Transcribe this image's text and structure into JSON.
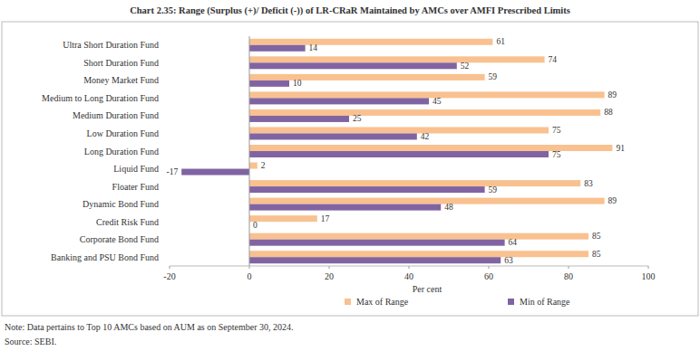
{
  "chart_data": {
    "type": "bar",
    "orientation": "horizontal",
    "title": "Chart 2.35: Range (Surplus (+)/ Deficit (-)) of LR-CRaR Maintained by AMCs over AMFI Prescribed Limits",
    "x_label": "Per cent",
    "note": "Note: Data pertains to Top 10 AMCs based on AUM as on September 30, 2024.",
    "source": "Source: SEBI.",
    "categories": [
      "Ultra Short Duration Fund",
      "Short Duration Fund",
      "Money Market Fund",
      "Medium to Long Duration Fund",
      "Medium Duration Fund",
      "Low Duration Fund",
      "Long Duration Fund",
      "Liquid Fund",
      "Floater Fund",
      "Dynamic Bond Fund",
      "Credit Risk Fund",
      "Corporate Bond Fund",
      "Banking and PSU Bond Fund"
    ],
    "series": [
      {
        "name": "Max of Range",
        "color": "#f9c190",
        "values": [
          61,
          74,
          59,
          89,
          88,
          75,
          91,
          2,
          83,
          89,
          17,
          85,
          85
        ]
      },
      {
        "name": "Min of Range",
        "color": "#8064a2",
        "values": [
          14,
          52,
          10,
          45,
          25,
          42,
          75,
          -17,
          59,
          48,
          0,
          64,
          63
        ]
      }
    ],
    "xlim": [
      -20,
      100
    ],
    "xticks": [
      -20,
      0,
      20,
      40,
      60,
      80,
      100
    ],
    "grid": false,
    "legend": "bottom",
    "data_labels": true
  }
}
